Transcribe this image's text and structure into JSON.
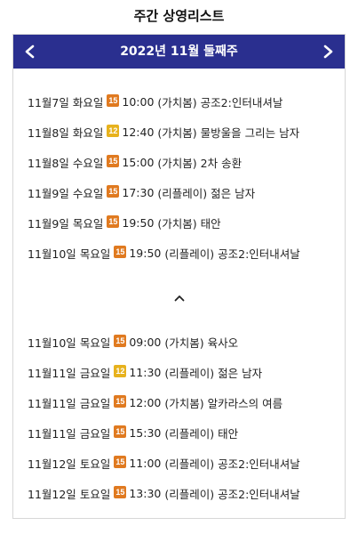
{
  "title": "주간 상영리스트",
  "header": {
    "week_label": "2022년 11월 둘째주"
  },
  "colors": {
    "header_bg": "#2a2f8f",
    "badge_15": "#e07a20",
    "badge_12": "#e7b21d"
  },
  "icons": {
    "prev": "chevron-left-icon",
    "next": "chevron-right-icon",
    "toggle": "chevron-up-icon"
  },
  "schedule_primary": [
    {
      "date": "11월7일",
      "day": "화요일",
      "rating": "15",
      "time": "10:00",
      "type": "(가치봄)",
      "film": "공조2:인터내셔날"
    },
    {
      "date": "11월8일",
      "day": "화요일",
      "rating": "12",
      "time": "12:40",
      "type": "(가치봄)",
      "film": "물방울을 그리는 남자"
    },
    {
      "date": "11월8일",
      "day": "수요일",
      "rating": "15",
      "time": "15:00",
      "type": "(가치봄)",
      "film": "2차 송환"
    },
    {
      "date": "11월9일",
      "day": "수요일",
      "rating": "15",
      "time": "17:30",
      "type": "(리플레이)",
      "film": "젊은 남자"
    },
    {
      "date": "11월9일",
      "day": "목요일",
      "rating": "15",
      "time": "19:50",
      "type": "(가치봄)",
      "film": "태안"
    },
    {
      "date": "11월10일",
      "day": "목요일",
      "rating": "15",
      "time": "19:50",
      "type": "(리플레이)",
      "film": "공조2:인터내셔날"
    }
  ],
  "schedule_more": [
    {
      "date": "11월10일",
      "day": "목요일",
      "rating": "15",
      "time": "09:00",
      "type": "(가치봄)",
      "film": "육사오"
    },
    {
      "date": "11월11일",
      "day": "금요일",
      "rating": "12",
      "time": "11:30",
      "type": "(리플레이)",
      "film": "젊은 남자"
    },
    {
      "date": "11월11일",
      "day": "금요일",
      "rating": "15",
      "time": "12:00",
      "type": "(가치봄)",
      "film": "알카라스의 여름"
    },
    {
      "date": "11월11일",
      "day": "금요일",
      "rating": "15",
      "time": "15:30",
      "type": "(리플레이)",
      "film": "태안"
    },
    {
      "date": "11월12일",
      "day": "토요일",
      "rating": "15",
      "time": "11:00",
      "type": "(리플레이)",
      "film": "공조2:인터내셔날"
    },
    {
      "date": "11월12일",
      "day": "토요일",
      "rating": "15",
      "time": "13:30",
      "type": "(리플레이)",
      "film": "공조2:인터내셔날"
    }
  ]
}
